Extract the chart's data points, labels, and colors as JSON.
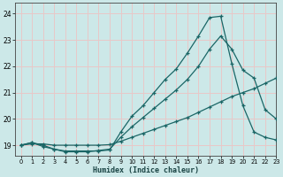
{
  "xlabel": "Humidex (Indice chaleur)",
  "bg_color": "#cce8e8",
  "grid_color": "#e8c8c8",
  "line_color": "#1a6666",
  "xlim": [
    -0.5,
    23
  ],
  "ylim": [
    18.6,
    24.4
  ],
  "yticks": [
    19,
    20,
    21,
    22,
    23,
    24
  ],
  "xticks": [
    0,
    1,
    2,
    3,
    4,
    5,
    6,
    7,
    8,
    9,
    10,
    11,
    12,
    13,
    14,
    15,
    16,
    17,
    18,
    19,
    20,
    21,
    22,
    23
  ],
  "line1_x": [
    0,
    1,
    2,
    3,
    4,
    5,
    6,
    7,
    8,
    9,
    10,
    11,
    12,
    13,
    14,
    15,
    16,
    17,
    18,
    19,
    20,
    21,
    22,
    23
  ],
  "line1_y": [
    19.0,
    19.1,
    19.0,
    18.85,
    18.75,
    18.75,
    18.75,
    18.8,
    18.85,
    19.3,
    19.7,
    20.05,
    20.4,
    20.75,
    21.1,
    21.5,
    22.0,
    22.65,
    23.15,
    22.65,
    21.85,
    21.55,
    20.35,
    20.0
  ],
  "line2_x": [
    0,
    1,
    2,
    3,
    4,
    5,
    6,
    7,
    8,
    9,
    10,
    11,
    12,
    13,
    14,
    15,
    16,
    17,
    18,
    19,
    20,
    21,
    22,
    23
  ],
  "line2_y": [
    19.0,
    19.1,
    18.95,
    18.85,
    18.78,
    18.78,
    18.78,
    18.78,
    18.82,
    19.5,
    20.1,
    20.5,
    21.0,
    21.5,
    21.9,
    22.5,
    23.15,
    23.85,
    23.9,
    22.1,
    20.5,
    19.5,
    19.3,
    19.2
  ],
  "line3_x": [
    0,
    1,
    2,
    3,
    4,
    5,
    6,
    7,
    8,
    9,
    10,
    11,
    12,
    13,
    14,
    15,
    16,
    17,
    18,
    19,
    20,
    21,
    22,
    23
  ],
  "line3_y": [
    19.0,
    19.05,
    19.05,
    19.0,
    19.0,
    19.0,
    19.0,
    19.0,
    19.02,
    19.15,
    19.3,
    19.45,
    19.6,
    19.75,
    19.9,
    20.05,
    20.25,
    20.45,
    20.65,
    20.85,
    21.0,
    21.15,
    21.35,
    21.55
  ]
}
